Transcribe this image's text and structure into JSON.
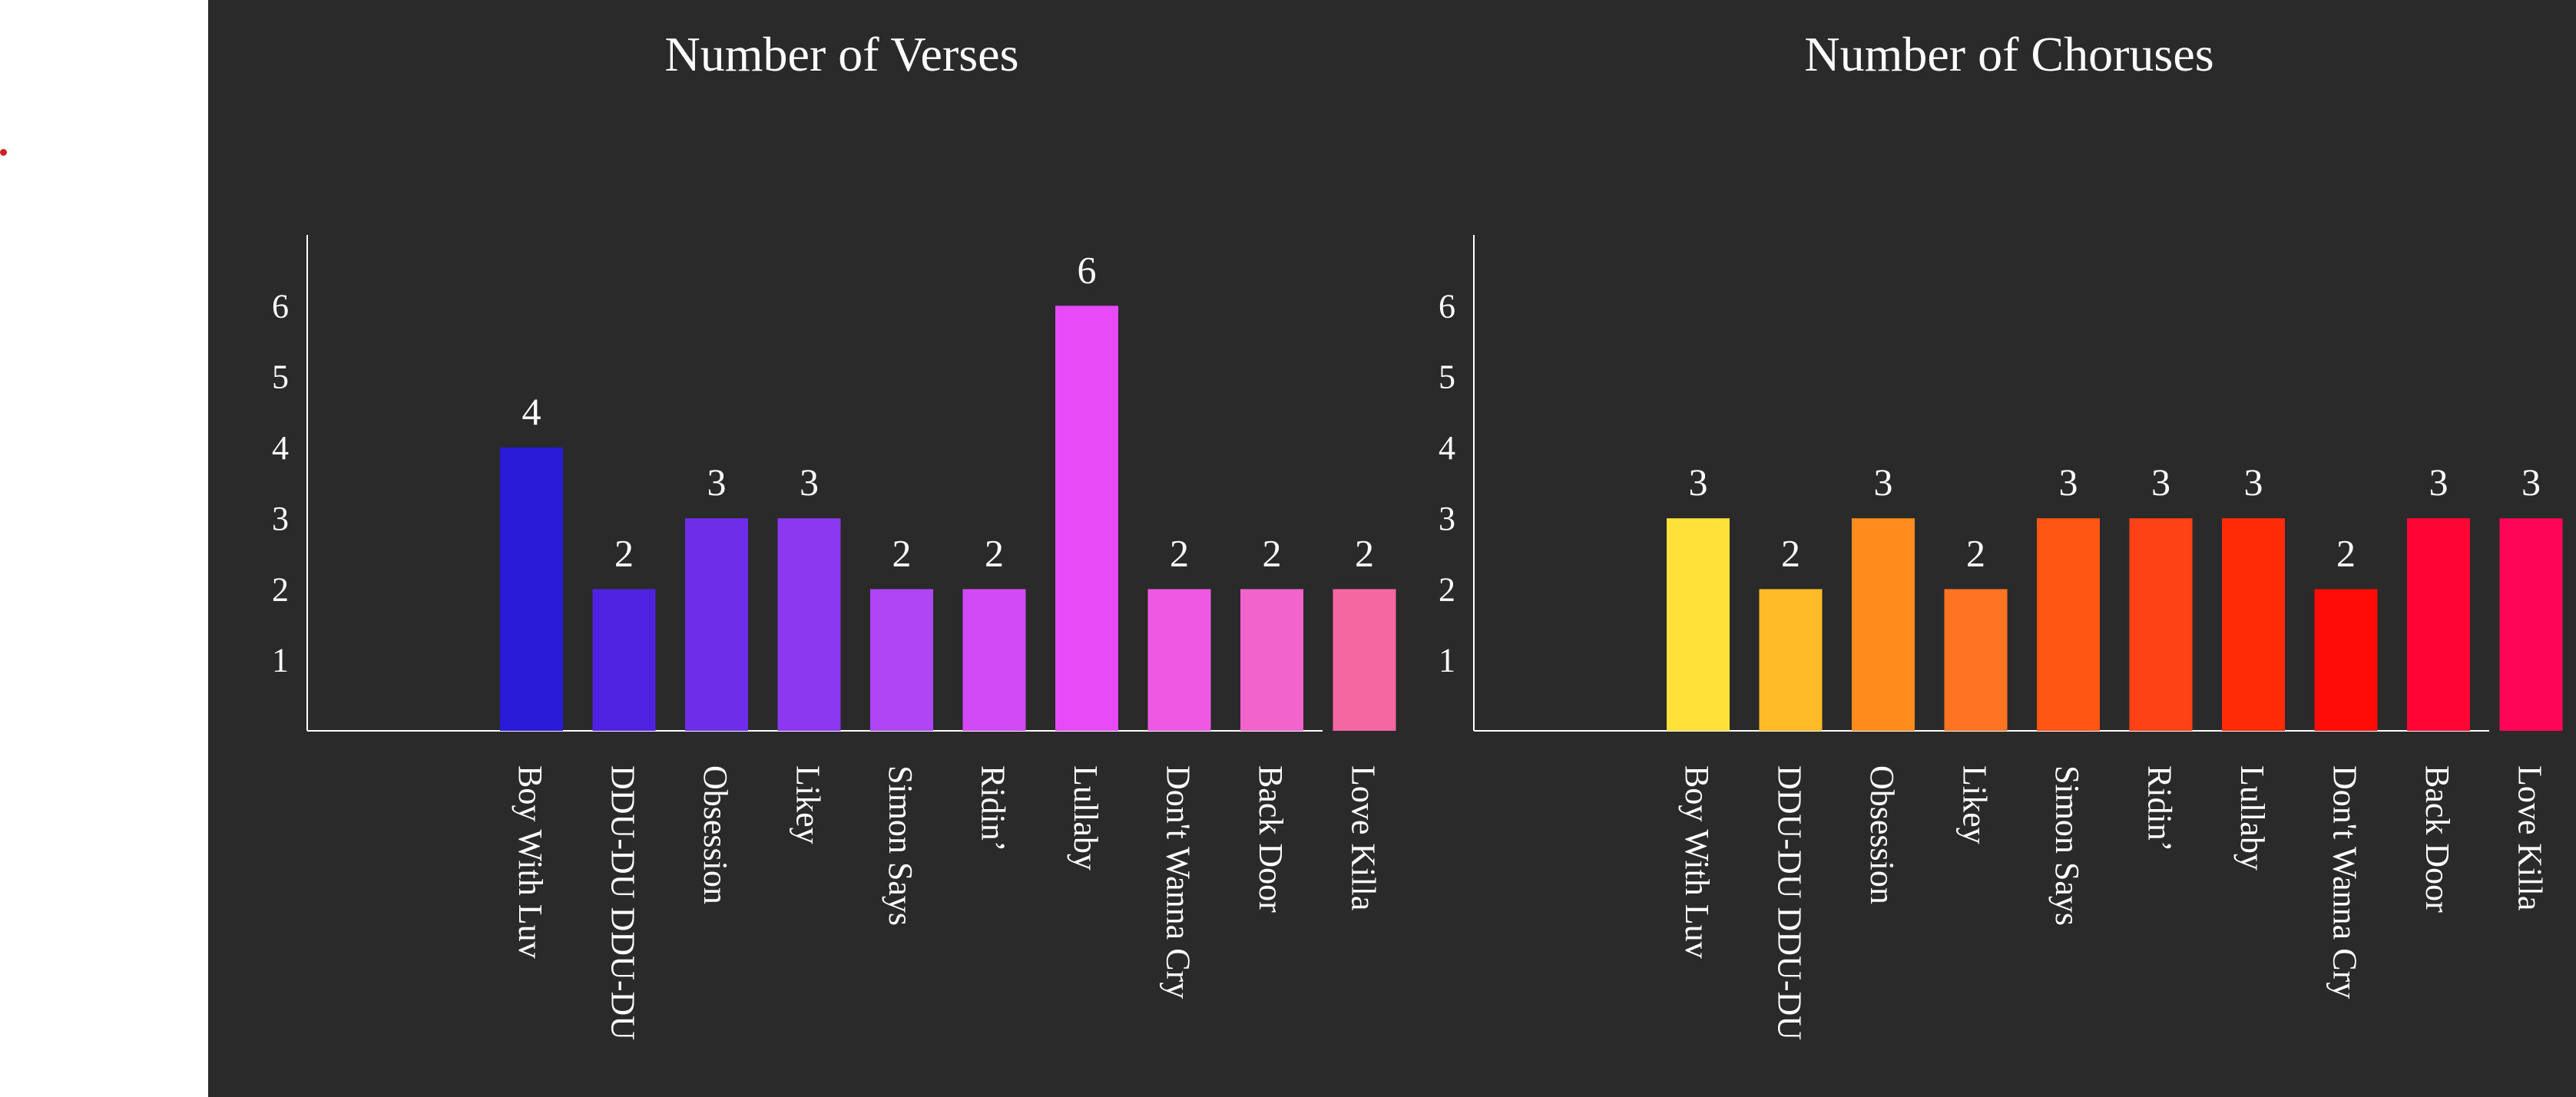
{
  "colors": {
    "panel_background": "#2a2a2a",
    "page_background": "#ffffff",
    "axis": "#ffffff",
    "text": "#ffffff",
    "accent_dot": "#cc2222"
  },
  "chart_data": [
    {
      "type": "bar",
      "title": "Number of Verses",
      "xlabel": "",
      "ylabel": "",
      "categories": [
        "Boy With Luv",
        "DDU-DU DDU-DU",
        "Obsession",
        "Likey",
        "Simon Says",
        "Ridin’",
        "Lullaby",
        "Don't Wanna Cry",
        "Back Door",
        "Love Killa"
      ],
      "values": [
        4,
        2,
        3,
        3,
        2,
        2,
        6,
        2,
        2,
        2
      ],
      "bar_colors": [
        "#2a1bd8",
        "#4e22e0",
        "#6e2de8",
        "#8c37f0",
        "#b045f6",
        "#d24af6",
        "#e94af7",
        "#ef58e2",
        "#f264cc",
        "#f567a0"
      ],
      "yticks": [
        1,
        2,
        3,
        4,
        5,
        6
      ],
      "ylim": [
        0,
        7
      ],
      "grid": false,
      "legend": "none",
      "data_labels": true
    },
    {
      "type": "bar",
      "title": "Number of Choruses",
      "xlabel": "",
      "ylabel": "",
      "categories": [
        "Boy With Luv",
        "DDU-DU DDU-DU",
        "Obsession",
        "Likey",
        "Simon Says",
        "Ridin’",
        "Lullaby",
        "Don't Wanna Cry",
        "Back Door",
        "Love Killa"
      ],
      "values": [
        3,
        2,
        3,
        2,
        3,
        3,
        3,
        2,
        3,
        3
      ],
      "bar_colors": [
        "#ffe13a",
        "#ffbc26",
        "#ff8c1c",
        "#ff7422",
        "#ff5614",
        "#ff4216",
        "#ff2a06",
        "#ff0c08",
        "#ff0536",
        "#ff0558"
      ],
      "yticks": [
        1,
        2,
        3,
        4,
        5,
        6
      ],
      "ylim": [
        0,
        7
      ],
      "grid": false,
      "legend": "none",
      "data_labels": true
    }
  ]
}
